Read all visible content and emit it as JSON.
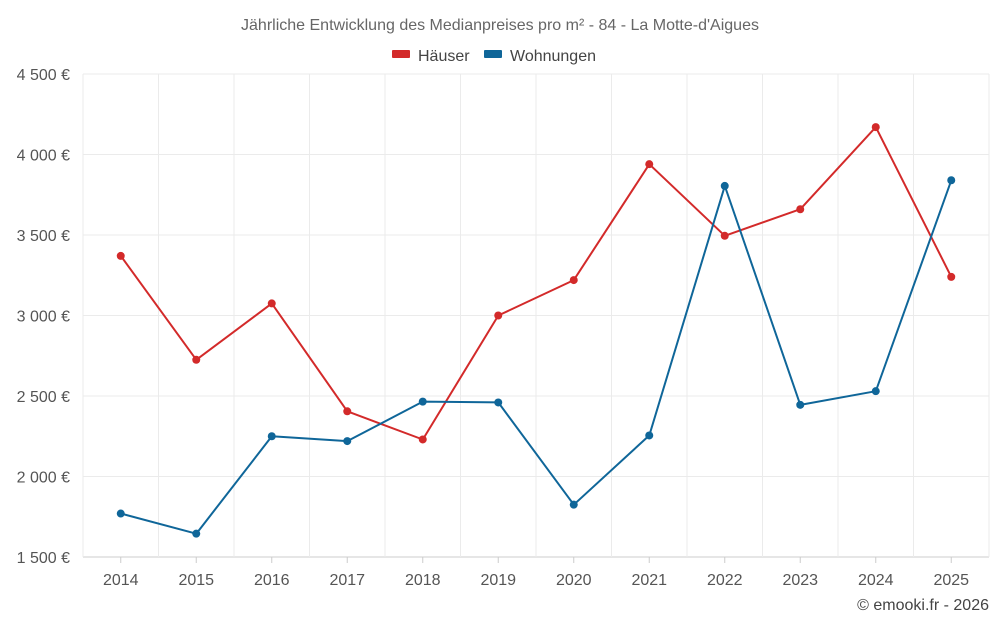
{
  "chart_data": {
    "type": "line",
    "title": "Jährliche Entwicklung des Medianpreises pro m² - 84 - La Motte-d'Aigues",
    "categories": [
      "2014",
      "2015",
      "2016",
      "2017",
      "2018",
      "2019",
      "2020",
      "2021",
      "2022",
      "2023",
      "2024",
      "2025"
    ],
    "ylim": [
      1500,
      4500
    ],
    "yticks": [
      1500,
      2000,
      2500,
      3000,
      3500,
      4000,
      4500
    ],
    "ytick_labels": [
      "1 500 €",
      "2 000 €",
      "2 500 €",
      "3 000 €",
      "3 500 €",
      "4 000 €",
      "4 500 €"
    ],
    "xlabel": "",
    "ylabel": "",
    "grid": true,
    "legend_position": "top-center",
    "series": [
      {
        "name": "Häuser",
        "color": "#d32a2a",
        "values": [
          3370,
          2725,
          3075,
          2405,
          2230,
          3000,
          3220,
          3940,
          3495,
          3660,
          4170,
          3240
        ]
      },
      {
        "name": "Wohnungen",
        "color": "#0f6699",
        "values": [
          1770,
          1645,
          2250,
          2220,
          2465,
          2460,
          1825,
          2255,
          3805,
          2445,
          2530,
          3840
        ]
      }
    ]
  },
  "credit": "© emooki.fr - 2026"
}
